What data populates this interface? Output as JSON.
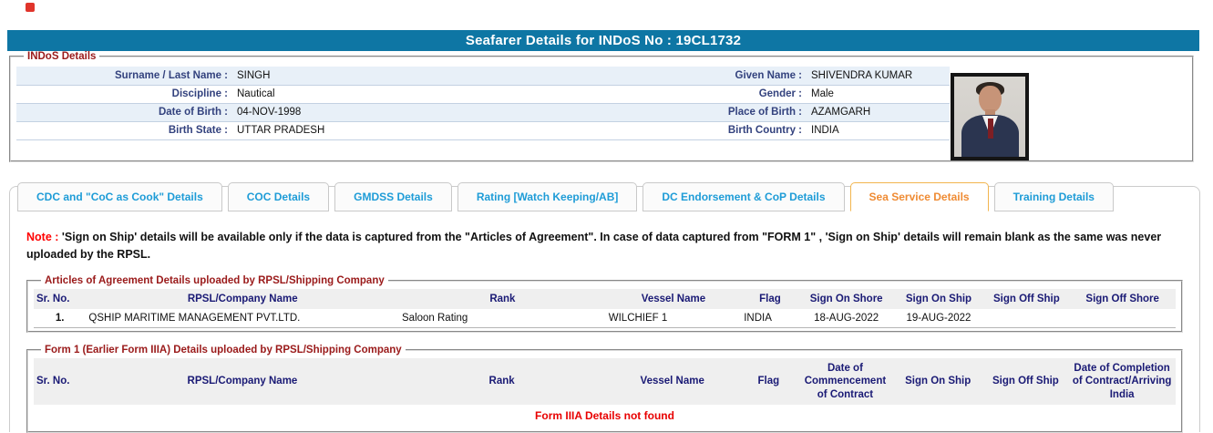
{
  "page": {
    "title": "Seafarer Details for INDoS No : 19CL1732"
  },
  "indos": {
    "legend": "INDoS Details",
    "rows": [
      {
        "label_left": "Surname / Last Name :",
        "value_left": "SINGH",
        "label_right": "Given Name :",
        "value_right": "SHIVENDRA KUMAR"
      },
      {
        "label_left": "Discipline :",
        "value_left": "Nautical",
        "label_right": "Gender :",
        "value_right": "Male"
      },
      {
        "label_left": "Date of Birth :",
        "value_left": "04-NOV-1998",
        "label_right": "Place of Birth :",
        "value_right": "AZAMGARH"
      },
      {
        "label_left": "Birth State :",
        "value_left": "UTTAR PRADESH",
        "label_right": "Birth Country :",
        "value_right": "INDIA"
      }
    ]
  },
  "tabs": [
    {
      "label": "CDC and \"CoC as Cook\" Details",
      "active": false
    },
    {
      "label": "COC Details",
      "active": false
    },
    {
      "label": "GMDSS Details",
      "active": false
    },
    {
      "label": "Rating [Watch Keeping/AB]",
      "active": false
    },
    {
      "label": "DC Endorsement & CoP Details",
      "active": false
    },
    {
      "label": "Sea Service Details",
      "active": true
    },
    {
      "label": "Training Details",
      "active": false
    }
  ],
  "note": {
    "prefix": "Note :",
    "body": "'Sign on Ship' details will be available only if the data is captured from the \"Articles of Agreement\". In case of data captured from \"FORM 1\" , 'Sign on Ship' details will remain blank as the same was never uploaded by the RPSL."
  },
  "articles": {
    "legend": "Articles of Agreement Details uploaded by RPSL/Shipping Company",
    "headers": [
      "Sr. No.",
      "RPSL/Company Name",
      "Rank",
      "Vessel Name",
      "Flag",
      "Sign On Shore",
      "Sign On Ship",
      "Sign Off Ship",
      "Sign Off Shore"
    ],
    "rows": [
      {
        "sr": "1.",
        "company": "QSHIP MARITIME MANAGEMENT PVT.LTD.",
        "rank": "Saloon Rating",
        "vessel": "WILCHIEF 1",
        "flag": "INDIA",
        "sign_on_shore": "18-AUG-2022",
        "sign_on_ship": "19-AUG-2022",
        "sign_off_ship": "",
        "sign_off_shore": ""
      }
    ]
  },
  "form1": {
    "legend": "Form 1 (Earlier Form IIIA) Details uploaded by RPSL/Shipping Company",
    "headers": [
      "Sr. No.",
      "RPSL/Company Name",
      "Rank",
      "Vessel Name",
      "Flag",
      "Date of Commencement of Contract",
      "Sign On Ship",
      "Sign Off Ship",
      "Date of Completion of Contract/Arriving India"
    ],
    "empty_message": "Form IIIA Details not found"
  },
  "colors": {
    "header_bar": "#0e76a4",
    "legend_maroon": "#9a1a1a",
    "label_navy": "#33427e",
    "table_header_navy": "#1a1a75",
    "tab_blue": "#1e9cd7",
    "active_tab_orange": "#ef8b33",
    "note_red": "#ff0000",
    "stripe_blue": "#e8f0f8"
  }
}
